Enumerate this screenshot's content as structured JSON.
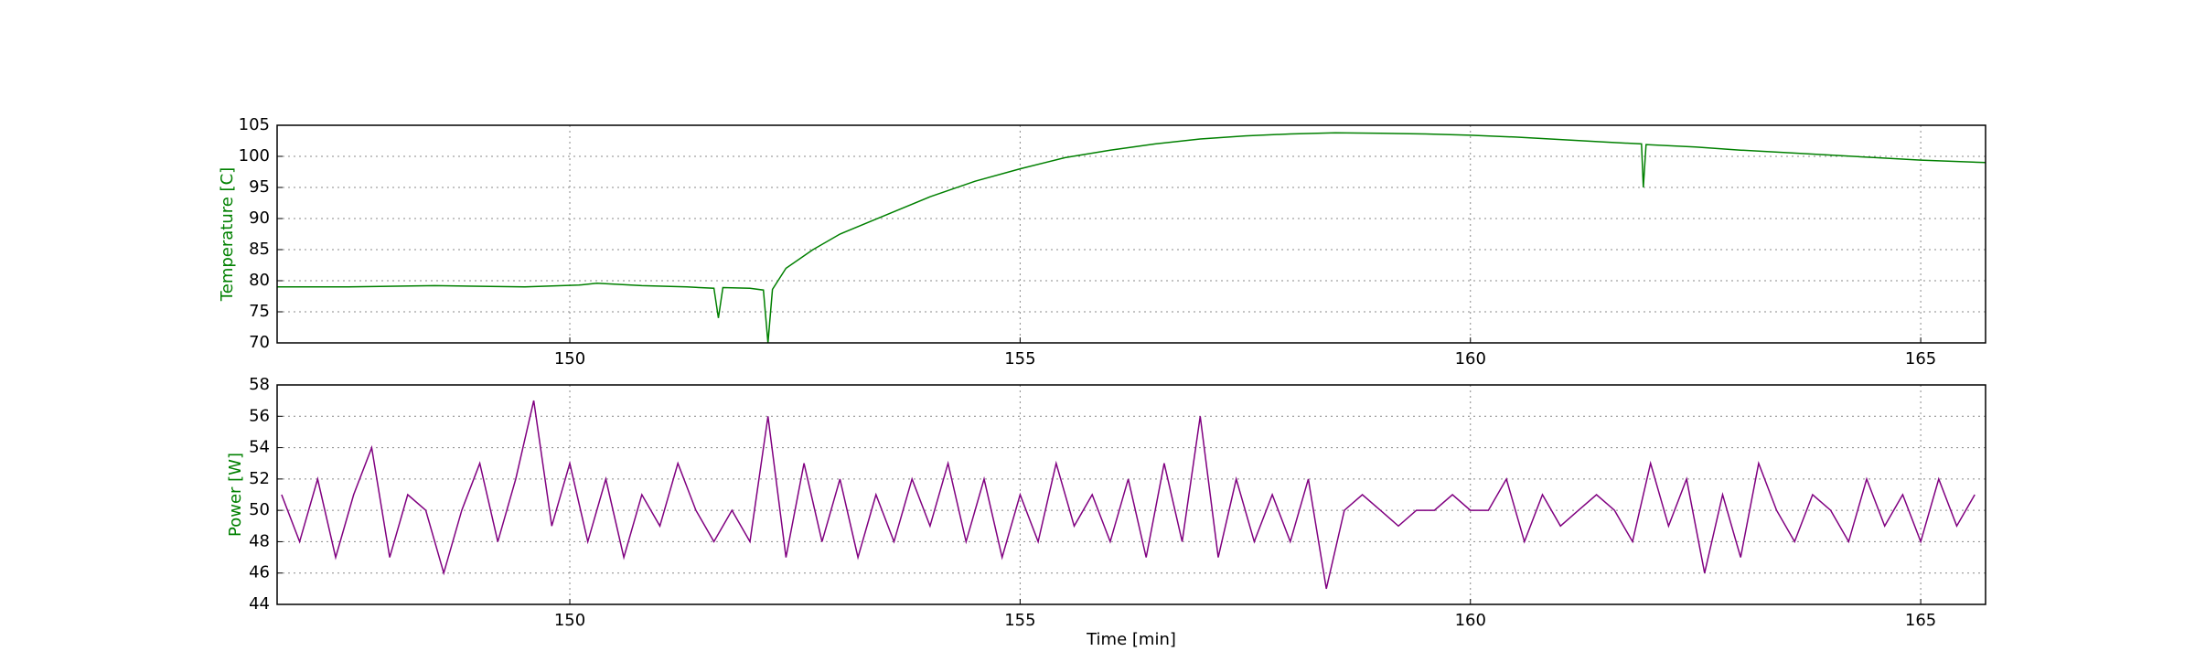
{
  "chart_data": [
    {
      "type": "line",
      "ylabel": "Temperature [C]",
      "label_color": "#008000",
      "color": "#008000",
      "x": [
        146.75,
        147.5,
        148.5,
        149.5,
        150.1,
        150.3,
        150.8,
        151.3,
        151.6,
        151.65,
        151.7,
        152.0,
        152.15,
        152.2,
        152.25,
        152.4,
        152.7,
        153,
        153.5,
        154,
        154.5,
        155,
        155.5,
        156,
        156.5,
        157,
        157.5,
        158,
        158.5,
        159,
        159.5,
        160,
        160.5,
        161,
        161.5,
        161.9,
        161.92,
        161.95,
        162.5,
        163,
        163.5,
        164,
        164.5,
        165,
        165.72
      ],
      "values": [
        79,
        79,
        79.2,
        79,
        79.3,
        79.6,
        79.2,
        79,
        78.8,
        74,
        78.9,
        78.8,
        78.5,
        70,
        78.6,
        82,
        85,
        87.5,
        90.5,
        93.5,
        96,
        98,
        99.8,
        101,
        102,
        102.8,
        103.3,
        103.6,
        103.8,
        103.7,
        103.6,
        103.4,
        103.1,
        102.7,
        102.3,
        102,
        95,
        101.9,
        101.5,
        101,
        100.6,
        100.2,
        99.8,
        99.4,
        99
      ],
      "xlim": [
        146.75,
        165.72
      ],
      "xticks": [
        150,
        155,
        160,
        165
      ],
      "ylim": [
        70,
        105
      ],
      "yticks": [
        70,
        75,
        80,
        85,
        90,
        95,
        100,
        105
      ],
      "grid": true
    },
    {
      "type": "line",
      "ylabel": "Power [W]",
      "xlabel": "Time [min]",
      "label_color": "#008000",
      "color": "#800080",
      "x": [
        146.8,
        147.0,
        147.2,
        147.4,
        147.6,
        147.8,
        148.0,
        148.2,
        148.4,
        148.6,
        148.8,
        149.0,
        149.2,
        149.4,
        149.6,
        149.8,
        150.0,
        150.2,
        150.4,
        150.6,
        150.8,
        151.0,
        151.2,
        151.4,
        151.6,
        151.8,
        152.0,
        152.2,
        152.4,
        152.6,
        152.8,
        153.0,
        153.2,
        153.4,
        153.6,
        153.8,
        154.0,
        154.2,
        154.4,
        154.6,
        154.8,
        155.0,
        155.2,
        155.4,
        155.6,
        155.8,
        156.0,
        156.2,
        156.4,
        156.6,
        156.8,
        157.0,
        157.2,
        157.4,
        157.6,
        157.8,
        158.0,
        158.2,
        158.4,
        158.6,
        158.8,
        159.0,
        159.2,
        159.4,
        159.6,
        159.8,
        160.0,
        160.2,
        160.4,
        160.6,
        160.8,
        161.0,
        161.2,
        161.4,
        161.6,
        161.8,
        162.0,
        162.2,
        162.4,
        162.6,
        162.8,
        163.0,
        163.2,
        163.4,
        163.6,
        163.8,
        164.0,
        164.2,
        164.4,
        164.6,
        164.8,
        165.0,
        165.2,
        165.4,
        165.6
      ],
      "values": [
        51,
        48,
        52,
        47,
        51,
        54,
        47,
        51,
        50,
        46,
        50,
        53,
        48,
        52,
        57,
        49,
        53,
        48,
        52,
        47,
        51,
        49,
        53,
        50,
        48,
        50,
        48,
        56,
        47,
        53,
        48,
        52,
        47,
        51,
        48,
        52,
        49,
        53,
        48,
        52,
        47,
        51,
        48,
        53,
        49,
        51,
        48,
        52,
        47,
        53,
        48,
        56,
        47,
        52,
        48,
        51,
        48,
        52,
        45,
        50,
        51,
        50,
        49,
        50,
        50,
        51,
        50,
        50,
        52,
        48,
        51,
        49,
        50,
        51,
        50,
        48,
        53,
        49,
        52,
        46,
        51,
        47,
        53,
        50,
        48,
        51,
        50,
        48,
        52,
        49,
        51,
        48,
        52,
        49,
        51
      ],
      "xlim": [
        146.75,
        165.72
      ],
      "xticks": [
        150,
        155,
        160,
        165
      ],
      "ylim": [
        44,
        58
      ],
      "yticks": [
        44,
        46,
        48,
        50,
        52,
        54,
        56,
        58
      ],
      "grid": true
    }
  ]
}
